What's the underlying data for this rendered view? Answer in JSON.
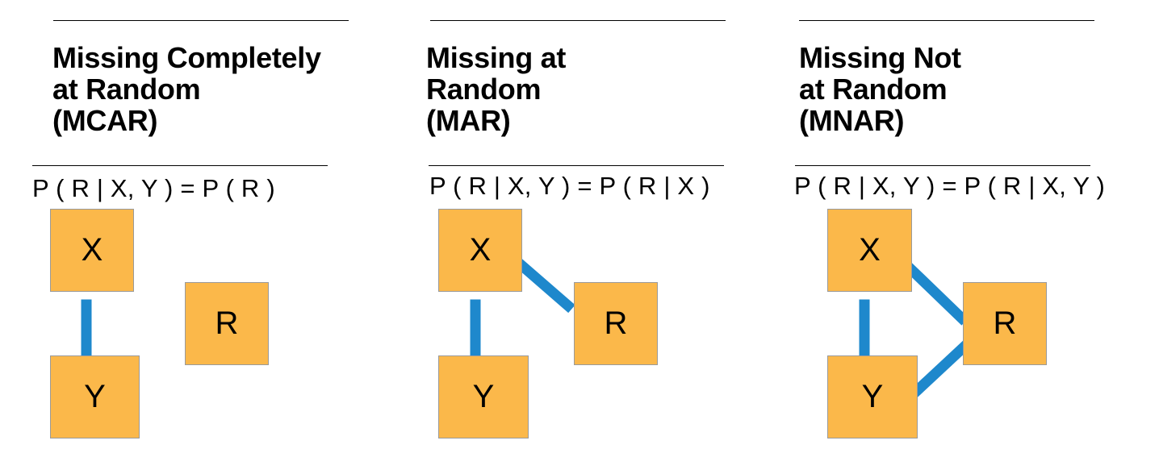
{
  "colors": {
    "node_fill": "#fbb84a",
    "node_border": "#9a9a9a",
    "edge": "#1e88cc",
    "text": "#000000"
  },
  "panels": [
    {
      "title_lines": [
        "Missing Completely",
        "at Random",
        "(MCAR)"
      ],
      "formula": "P ( R | X, Y ) = P ( R )",
      "nodes": {
        "x": "X",
        "y": "Y",
        "r": "R"
      },
      "edges": [
        "X-Y"
      ]
    },
    {
      "title_lines": [
        "Missing at",
        "Random",
        "(MAR)"
      ],
      "formula": "P ( R | X, Y ) = P ( R | X )",
      "nodes": {
        "x": "X",
        "y": "Y",
        "r": "R"
      },
      "edges": [
        "X-Y",
        "X-R"
      ]
    },
    {
      "title_lines": [
        "Missing Not",
        "at Random",
        "(MNAR)"
      ],
      "formula": "P ( R | X, Y ) = P ( R | X, Y )",
      "nodes": {
        "x": "X",
        "y": "Y",
        "r": "R"
      },
      "edges": [
        "X-Y",
        "X-R",
        "Y-R"
      ]
    }
  ]
}
